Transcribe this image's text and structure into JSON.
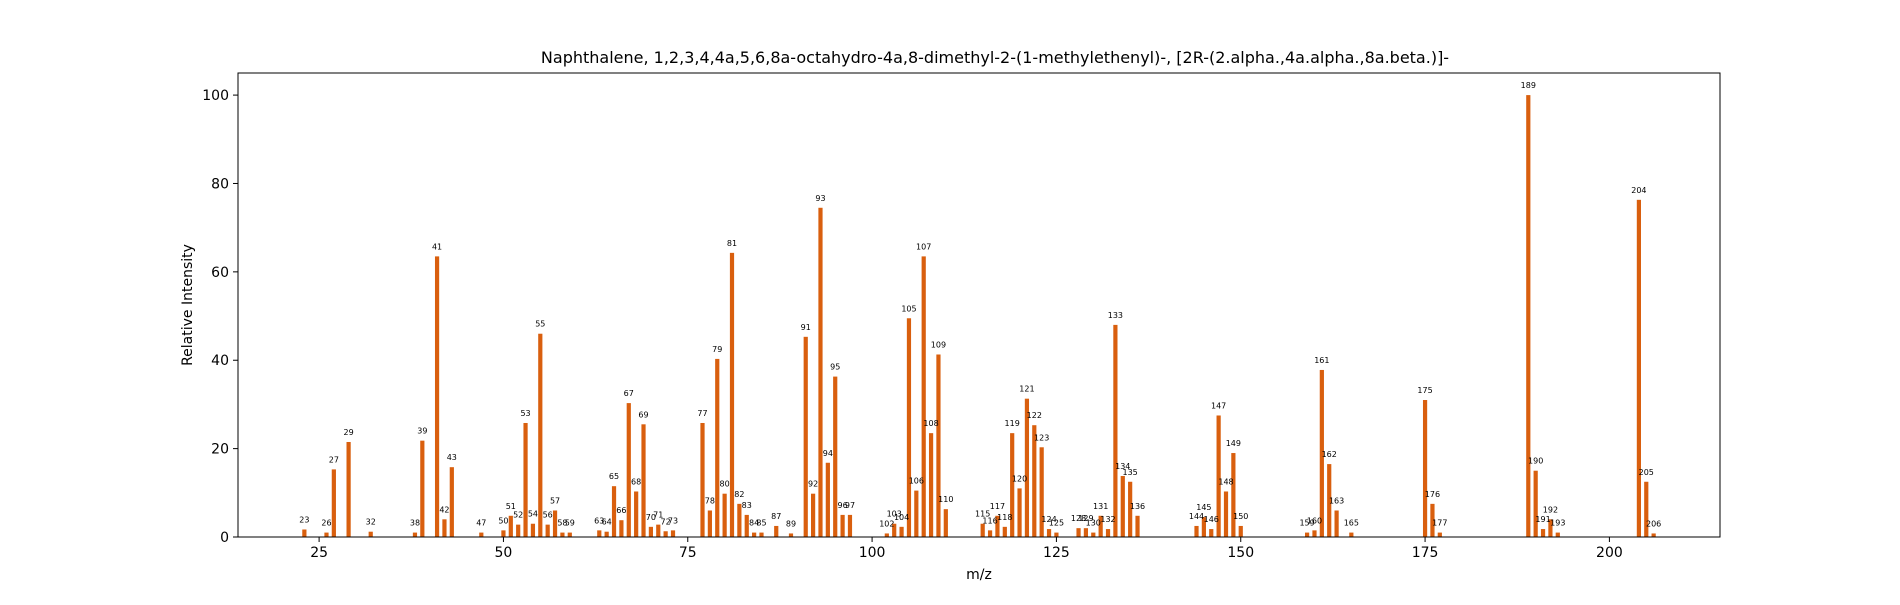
{
  "chart_data": {
    "type": "bar",
    "title": "Naphthalene, 1,2,3,4,4a,5,6,8a-octahydro-4a,8-dimethyl-2-(1-methylethenyl)-, [2R-(2.alpha.,4a.alpha.,8a.beta.)]-",
    "xlabel": "m/z",
    "ylabel": "Relative Intensity",
    "xlim": [
      14,
      215
    ],
    "ylim": [
      0,
      105
    ],
    "xticks": [
      25,
      50,
      75,
      100,
      125,
      150,
      175,
      200
    ],
    "yticks": [
      0,
      20,
      40,
      60,
      80,
      100
    ],
    "bar_color": "#d95f0e",
    "grid": false,
    "legend": "none",
    "points": [
      {
        "x": 23,
        "y": 1.7,
        "label": "23"
      },
      {
        "x": 26,
        "y": 1.0,
        "label": "26"
      },
      {
        "x": 27,
        "y": 15.3,
        "label": "27"
      },
      {
        "x": 29,
        "y": 21.5,
        "label": "29"
      },
      {
        "x": 32,
        "y": 1.2,
        "label": "32"
      },
      {
        "x": 38,
        "y": 1.0,
        "label": "38"
      },
      {
        "x": 39,
        "y": 21.8,
        "label": "39"
      },
      {
        "x": 41,
        "y": 63.5,
        "label": "41"
      },
      {
        "x": 42,
        "y": 4.0,
        "label": "42"
      },
      {
        "x": 43,
        "y": 15.8,
        "label": "43"
      },
      {
        "x": 47,
        "y": 1.0,
        "label": "47"
      },
      {
        "x": 50,
        "y": 1.5,
        "label": "50"
      },
      {
        "x": 51,
        "y": 4.8,
        "label": "51"
      },
      {
        "x": 52,
        "y": 2.8,
        "label": "52"
      },
      {
        "x": 53,
        "y": 25.8,
        "label": "53"
      },
      {
        "x": 54,
        "y": 3.0,
        "label": "54"
      },
      {
        "x": 55,
        "y": 46.0,
        "label": "55"
      },
      {
        "x": 56,
        "y": 2.8,
        "label": "56"
      },
      {
        "x": 57,
        "y": 6.0,
        "label": "57"
      },
      {
        "x": 58,
        "y": 1.0,
        "label": "58"
      },
      {
        "x": 59,
        "y": 1.0,
        "label": "59"
      },
      {
        "x": 63,
        "y": 1.5,
        "label": "63"
      },
      {
        "x": 64,
        "y": 1.2,
        "label": "64"
      },
      {
        "x": 65,
        "y": 11.5,
        "label": "65"
      },
      {
        "x": 66,
        "y": 3.8,
        "label": "66"
      },
      {
        "x": 67,
        "y": 30.3,
        "label": "67"
      },
      {
        "x": 68,
        "y": 10.3,
        "label": "68"
      },
      {
        "x": 69,
        "y": 25.5,
        "label": "69"
      },
      {
        "x": 70,
        "y": 2.3,
        "label": "70"
      },
      {
        "x": 71,
        "y": 2.8,
        "label": "71"
      },
      {
        "x": 72,
        "y": 1.3,
        "label": "72"
      },
      {
        "x": 73,
        "y": 1.5,
        "label": "73"
      },
      {
        "x": 77,
        "y": 25.8,
        "label": "77"
      },
      {
        "x": 78,
        "y": 6.0,
        "label": "78"
      },
      {
        "x": 79,
        "y": 40.3,
        "label": "79"
      },
      {
        "x": 80,
        "y": 9.8,
        "label": "80"
      },
      {
        "x": 81,
        "y": 64.3,
        "label": "81"
      },
      {
        "x": 82,
        "y": 7.5,
        "label": "82"
      },
      {
        "x": 83,
        "y": 5.0,
        "label": "83"
      },
      {
        "x": 84,
        "y": 1.0,
        "label": "84"
      },
      {
        "x": 85,
        "y": 1.0,
        "label": "85"
      },
      {
        "x": 87,
        "y": 2.5,
        "label": "87"
      },
      {
        "x": 89,
        "y": 0.8,
        "label": "89"
      },
      {
        "x": 91,
        "y": 45.3,
        "label": "91"
      },
      {
        "x": 92,
        "y": 9.8,
        "label": "92"
      },
      {
        "x": 93,
        "y": 74.5,
        "label": "93"
      },
      {
        "x": 94,
        "y": 16.8,
        "label": "94"
      },
      {
        "x": 95,
        "y": 36.3,
        "label": "95"
      },
      {
        "x": 96,
        "y": 5.0,
        "label": "96"
      },
      {
        "x": 97,
        "y": 5.0,
        "label": "97"
      },
      {
        "x": 102,
        "y": 0.8,
        "label": "102"
      },
      {
        "x": 103,
        "y": 3.0,
        "label": "103"
      },
      {
        "x": 104,
        "y": 2.3,
        "label": "104"
      },
      {
        "x": 105,
        "y": 49.5,
        "label": "105"
      },
      {
        "x": 106,
        "y": 10.5,
        "label": "106"
      },
      {
        "x": 107,
        "y": 63.5,
        "label": "107"
      },
      {
        "x": 108,
        "y": 23.5,
        "label": "108"
      },
      {
        "x": 109,
        "y": 41.3,
        "label": "109"
      },
      {
        "x": 110,
        "y": 6.3,
        "label": "110"
      },
      {
        "x": 115,
        "y": 3.0,
        "label": "115"
      },
      {
        "x": 116,
        "y": 1.5,
        "label": "116"
      },
      {
        "x": 117,
        "y": 4.8,
        "label": "117"
      },
      {
        "x": 118,
        "y": 2.3,
        "label": "118"
      },
      {
        "x": 119,
        "y": 23.5,
        "label": "119"
      },
      {
        "x": 120,
        "y": 11.0,
        "label": "120"
      },
      {
        "x": 121,
        "y": 31.3,
        "label": "121"
      },
      {
        "x": 122,
        "y": 25.3,
        "label": "122"
      },
      {
        "x": 123,
        "y": 20.3,
        "label": "123"
      },
      {
        "x": 124,
        "y": 1.8,
        "label": "124"
      },
      {
        "x": 125,
        "y": 1.0,
        "label": "125"
      },
      {
        "x": 128,
        "y": 2.0,
        "label": "128"
      },
      {
        "x": 129,
        "y": 2.0,
        "label": "129"
      },
      {
        "x": 130,
        "y": 1.0,
        "label": "130"
      },
      {
        "x": 131,
        "y": 4.8,
        "label": "131"
      },
      {
        "x": 132,
        "y": 1.8,
        "label": "132"
      },
      {
        "x": 133,
        "y": 48.0,
        "label": "133"
      },
      {
        "x": 134,
        "y": 13.8,
        "label": "134"
      },
      {
        "x": 135,
        "y": 12.5,
        "label": "135"
      },
      {
        "x": 136,
        "y": 4.8,
        "label": "136"
      },
      {
        "x": 144,
        "y": 2.5,
        "label": "144"
      },
      {
        "x": 145,
        "y": 4.5,
        "label": "145"
      },
      {
        "x": 146,
        "y": 1.8,
        "label": "146"
      },
      {
        "x": 147,
        "y": 27.5,
        "label": "147"
      },
      {
        "x": 148,
        "y": 10.3,
        "label": "148"
      },
      {
        "x": 149,
        "y": 19.0,
        "label": "149"
      },
      {
        "x": 150,
        "y": 2.5,
        "label": "150"
      },
      {
        "x": 159,
        "y": 1.0,
        "label": "159"
      },
      {
        "x": 160,
        "y": 1.5,
        "label": "160"
      },
      {
        "x": 161,
        "y": 37.8,
        "label": "161"
      },
      {
        "x": 162,
        "y": 16.5,
        "label": "162"
      },
      {
        "x": 163,
        "y": 6.0,
        "label": "163"
      },
      {
        "x": 165,
        "y": 1.0,
        "label": "165"
      },
      {
        "x": 175,
        "y": 31.0,
        "label": "175"
      },
      {
        "x": 176,
        "y": 7.5,
        "label": "176"
      },
      {
        "x": 177,
        "y": 1.0,
        "label": "177"
      },
      {
        "x": 189,
        "y": 100.0,
        "label": "189"
      },
      {
        "x": 190,
        "y": 15.0,
        "label": "190"
      },
      {
        "x": 191,
        "y": 1.8,
        "label": "191"
      },
      {
        "x": 192,
        "y": 4.0,
        "label": "192"
      },
      {
        "x": 193,
        "y": 1.0,
        "label": "193"
      },
      {
        "x": 204,
        "y": 76.3,
        "label": "204"
      },
      {
        "x": 205,
        "y": 12.5,
        "label": "205"
      },
      {
        "x": 206,
        "y": 0.8,
        "label": "206"
      }
    ]
  }
}
